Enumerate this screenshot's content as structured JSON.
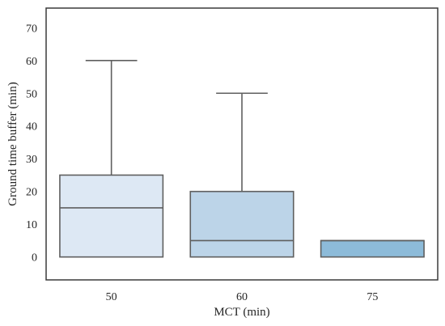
{
  "chart_data": {
    "type": "box",
    "title": "",
    "xlabel": "MCT (min)",
    "ylabel": "Ground time buffer (min)",
    "categories": [
      "50",
      "60",
      "75"
    ],
    "ylim": [
      -7,
      76
    ],
    "yticks": [
      0,
      10,
      20,
      30,
      40,
      50,
      60,
      70
    ],
    "grid": false,
    "boxes": [
      {
        "category": "50",
        "whisker_low": 0,
        "q1": 0,
        "median": 15,
        "q3": 25,
        "whisker_high": 60,
        "color": "#dde8f4"
      },
      {
        "category": "60",
        "whisker_low": 0,
        "q1": 0,
        "median": 5,
        "q3": 20,
        "whisker_high": 50,
        "color": "#bcd4e8"
      },
      {
        "category": "75",
        "whisker_low": 0,
        "q1": 0,
        "median": 5,
        "q3": 5,
        "whisker_high": 5,
        "color": "#8dbbd9"
      }
    ],
    "line_color": "#5f5f5f",
    "frame_color": "#3a3a3a"
  }
}
